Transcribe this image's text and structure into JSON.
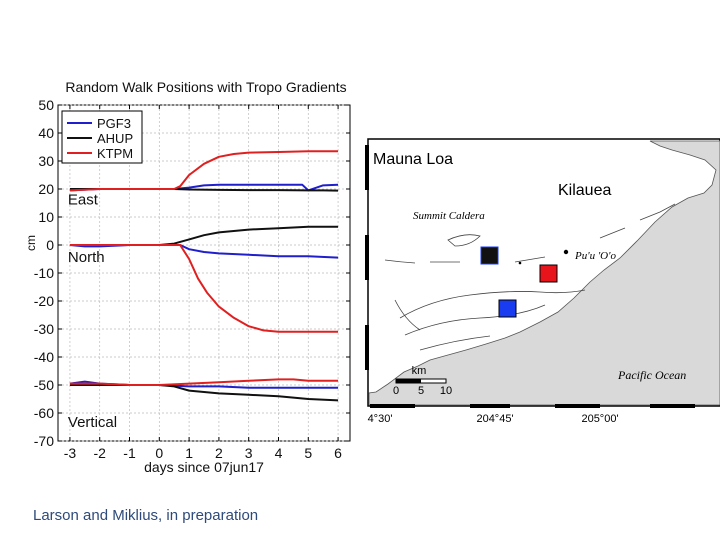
{
  "chart_data": {
    "type": "line",
    "title": "Random Walk Positions with Tropo Gradients",
    "xlabel": "days since 07jun17",
    "ylabel": "cm",
    "xlim": [
      -3.4,
      6.4
    ],
    "ylim": [
      -70,
      50
    ],
    "xticks": [
      -3,
      -2,
      -1,
      0,
      1,
      2,
      3,
      4,
      5,
      6
    ],
    "yticks": [
      50,
      40,
      30,
      20,
      10,
      0,
      -10,
      -20,
      -30,
      -40,
      -50,
      -60,
      -70
    ],
    "legend": {
      "placement": "top-left",
      "entries": [
        "PGF3",
        "AHUP",
        "KTPM"
      ]
    },
    "panel_labels": [
      {
        "text": "East",
        "x": -3,
        "y": 14.5
      },
      {
        "text": "North",
        "x": -3,
        "y": -6
      },
      {
        "text": "Vertical",
        "x": -3,
        "y": -65
      }
    ],
    "series": [
      {
        "name": "PGF3",
        "component": "East",
        "color": "#1f1fcc",
        "x": [
          -3,
          -2,
          -1,
          0,
          0.5,
          1,
          1.5,
          2,
          3,
          4,
          4.8,
          5,
          5.5,
          6
        ],
        "values": [
          19.5,
          20,
          20,
          20,
          20,
          20.5,
          21.3,
          21.5,
          21.5,
          21.5,
          21.5,
          19.5,
          21.3,
          21.5
        ]
      },
      {
        "name": "AHUP",
        "component": "East",
        "color": "#111111",
        "x": [
          -3,
          -2,
          -1,
          0,
          0.5,
          1,
          2,
          3,
          4,
          5,
          5.5,
          6
        ],
        "values": [
          20,
          20,
          20,
          20,
          20,
          19.8,
          19.7,
          19.6,
          19.6,
          19.5,
          19.5,
          19.4
        ]
      },
      {
        "name": "KTPM",
        "component": "East",
        "color": "#e02020",
        "x": [
          -3,
          -2,
          -1,
          0,
          0.5,
          0.7,
          1,
          1.5,
          2,
          2.5,
          3,
          4,
          5,
          6
        ],
        "values": [
          19.5,
          20,
          20,
          20,
          20,
          21,
          25,
          29,
          31.5,
          32.5,
          33,
          33.2,
          33.5,
          33.5
        ]
      },
      {
        "name": "PGF3",
        "component": "North",
        "color": "#1f1fcc",
        "x": [
          -3,
          -2.5,
          -2,
          -1,
          0,
          0.7,
          1,
          1.5,
          2,
          3,
          4,
          5,
          6
        ],
        "values": [
          0,
          -0.5,
          -0.5,
          0,
          0,
          0,
          -1.5,
          -2.5,
          -3,
          -3.5,
          -4,
          -4,
          -4.5
        ]
      },
      {
        "name": "AHUP",
        "component": "North",
        "color": "#111111",
        "x": [
          -3,
          -2,
          -1,
          0,
          0.5,
          1,
          1.5,
          2,
          3,
          4,
          5,
          6
        ],
        "values": [
          0,
          0,
          0,
          0,
          0.5,
          2,
          3.5,
          4.5,
          5.5,
          6,
          6.5,
          6.5
        ]
      },
      {
        "name": "KTPM",
        "component": "North",
        "color": "#e02020",
        "x": [
          -3,
          -2,
          -1,
          0,
          0.7,
          1,
          1.3,
          1.6,
          2,
          2.5,
          3,
          3.5,
          4,
          5,
          6
        ],
        "values": [
          0,
          0,
          0,
          0,
          0,
          -5,
          -12,
          -17,
          -22,
          -26,
          -29,
          -30.5,
          -31,
          -31,
          -31
        ]
      },
      {
        "name": "PGF3",
        "component": "Vertical",
        "color": "#1f1fcc",
        "x": [
          -3,
          -2.5,
          -2,
          -1,
          0,
          1,
          2,
          3,
          4,
          5,
          6
        ],
        "values": [
          -49.5,
          -48.8,
          -49.5,
          -50,
          -50,
          -50.5,
          -50.5,
          -51,
          -51,
          -51,
          -51
        ]
      },
      {
        "name": "AHUP",
        "component": "Vertical",
        "color": "#111111",
        "x": [
          -3,
          -2,
          -1,
          0,
          0.5,
          1,
          2,
          3,
          4,
          5,
          6
        ],
        "values": [
          -50,
          -50,
          -50,
          -50,
          -50.5,
          -52,
          -53,
          -53.5,
          -54,
          -55,
          -55.5
        ]
      },
      {
        "name": "KTPM",
        "component": "Vertical",
        "color": "#e02020",
        "x": [
          -3,
          -2,
          -1,
          0,
          1,
          2,
          3,
          4,
          4.5,
          5,
          6
        ],
        "values": [
          -49.5,
          -49.5,
          -50,
          -50,
          -49.5,
          -49,
          -48.5,
          -48,
          -48,
          -48.5,
          -48.5
        ]
      }
    ]
  },
  "map": {
    "labels": {
      "mauna_loa": "Mauna Loa",
      "kilauea": "Kilauea",
      "summit_caldera": "Summit Caldera",
      "puu_oo": "Pu'u 'O'o",
      "pacific_ocean": "Pacific Ocean"
    },
    "scale_bar": {
      "unit": "km",
      "ticks": [
        "0",
        "5",
        "10"
      ]
    },
    "longitude_labels": [
      "4°30'",
      "204°45'",
      "205°00'"
    ],
    "station_colors": {
      "black": "#111111",
      "red": "#e8141c",
      "blue": "#1a3cf0"
    }
  },
  "caption": "Larson and Miklius, in preparation"
}
